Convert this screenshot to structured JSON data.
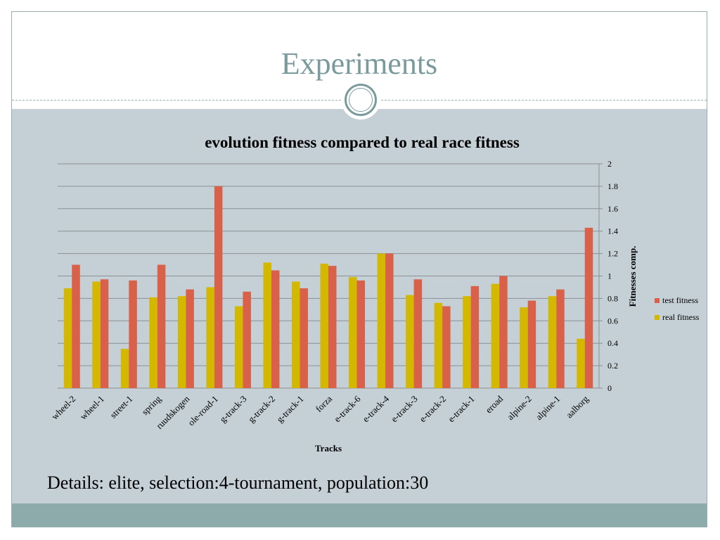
{
  "slide": {
    "title": "Experiments",
    "details": "Details: elite, selection:4-tournament, population:30"
  },
  "colors": {
    "title": "#7a9a9c",
    "panel_bg": "#c5d0d6",
    "footer": "#8eabab",
    "test_fitness": "#d9614a",
    "real_fitness": "#d4b800"
  },
  "chart_data": {
    "type": "bar",
    "title": "evolution fitness compared to real race fitness",
    "xlabel": "Tracks",
    "ylabel": "Fitnesses comp.",
    "ylim": [
      0,
      2
    ],
    "yticks": [
      "0",
      "0.2",
      "0.4",
      "0.6",
      "0.8",
      "1",
      "1.2",
      "1.4",
      "1.6",
      "1.8",
      "2"
    ],
    "y_axis_side": "right",
    "grid": true,
    "legend_position": "right",
    "categories": [
      "wheel-2",
      "wheel-1",
      "street-1",
      "spring",
      "ruudskogen",
      "ole-road-1",
      "g-track-3",
      "g-track-2",
      "g-track-1",
      "forza",
      "e-track-6",
      "e-track-4",
      "e-track-3",
      "e-track-2",
      "e-track-1",
      "eroad",
      "alpine-2",
      "alpine-1",
      "aalborg"
    ],
    "series": [
      {
        "name": "real fitness",
        "color": "#d4b800",
        "values": [
          0.89,
          0.95,
          0.35,
          0.81,
          0.82,
          0.9,
          0.73,
          1.12,
          0.95,
          1.11,
          0.99,
          1.2,
          0.83,
          0.76,
          0.82,
          0.93,
          0.72,
          0.82,
          0.44
        ]
      },
      {
        "name": "test fitness",
        "color": "#d9614a",
        "values": [
          1.1,
          0.97,
          0.96,
          1.1,
          0.88,
          1.8,
          0.86,
          1.05,
          0.89,
          1.09,
          0.96,
          1.2,
          0.97,
          0.73,
          0.91,
          1.0,
          0.78,
          0.88,
          1.43
        ]
      }
    ],
    "legend_order": [
      "test fitness",
      "real fitness"
    ]
  }
}
